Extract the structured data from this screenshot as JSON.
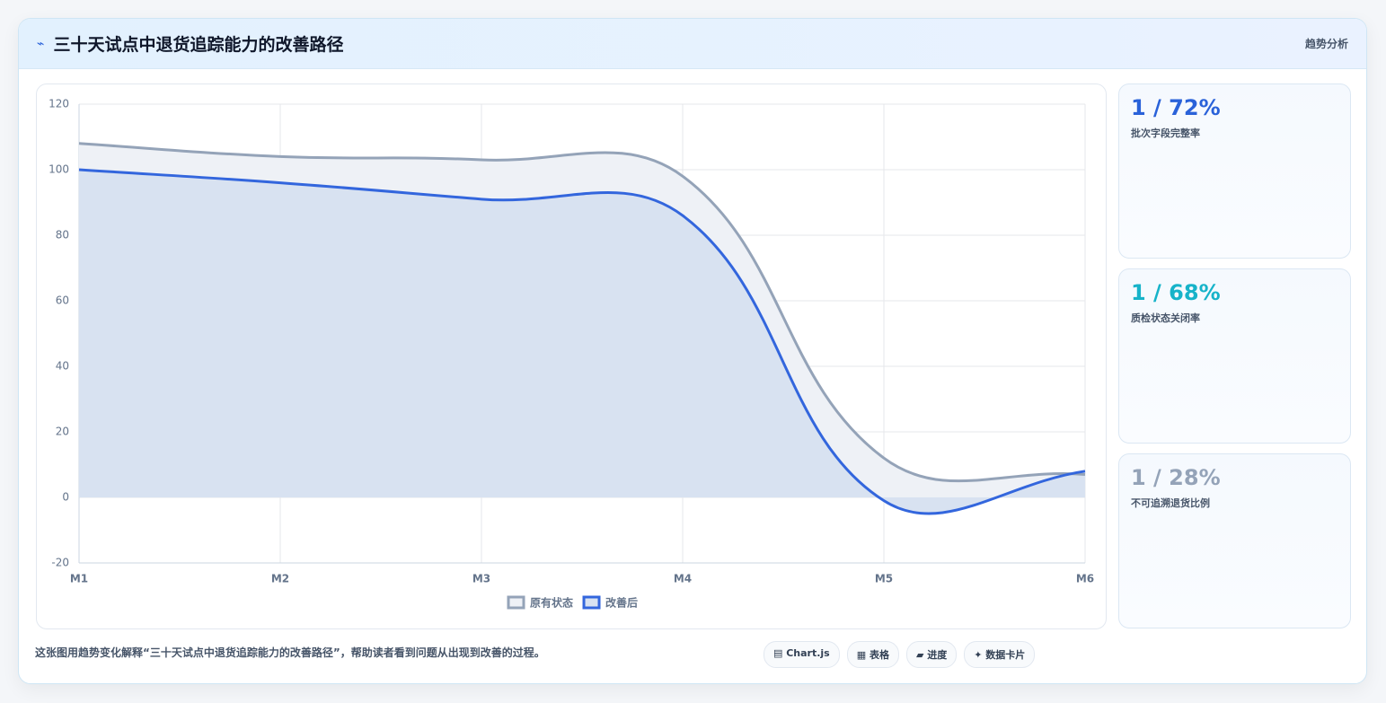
{
  "header": {
    "icon": "⌁",
    "title": "三十天试点中退货追踪能力的改善路径",
    "tag": "趋势分析"
  },
  "chart_data": {
    "type": "line",
    "categories": [
      "M1",
      "M2",
      "M3",
      "M4",
      "M5",
      "M6"
    ],
    "series": [
      {
        "name": "原有状态",
        "color": "#94a3b8",
        "fill": "#eef1f6",
        "values": [
          108,
          104,
          103,
          98,
          12,
          7
        ]
      },
      {
        "name": "改善后",
        "color": "#3366dd",
        "fill": "#d8e2f1",
        "values": [
          100,
          96,
          91,
          86,
          -1,
          8
        ]
      }
    ],
    "ylim": [
      -20,
      120
    ],
    "yticks": [
      -20,
      0,
      20,
      40,
      60,
      80,
      100,
      120
    ],
    "grid": true,
    "legend": "bottom"
  },
  "cards": [
    {
      "value": "1 / 72%",
      "label": "批次字段完整率",
      "color": "#2a62d9"
    },
    {
      "value": "1 / 68%",
      "label": "质检状态关闭率",
      "color": "#17b3c9"
    },
    {
      "value": "1 / 28%",
      "label": "不可追溯退货比例",
      "color": "#94a3b8"
    }
  ],
  "footer": {
    "text": "这张图用趋势变化解释“三十天试点中退货追踪能力的改善路径”，帮助读者看到问题从出现到改善的过程。",
    "buttons": [
      "▤ Chart.js",
      "▦ 表格",
      "▰ 进度",
      "✦ 数据卡片"
    ]
  }
}
